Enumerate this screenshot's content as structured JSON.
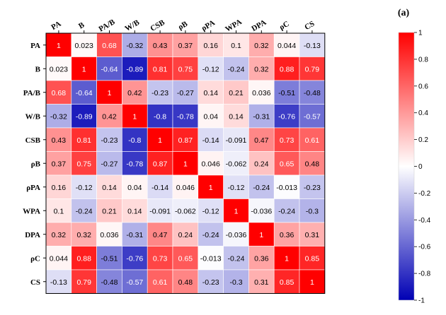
{
  "chart_data": {
    "type": "heatmap",
    "panel_label": "(a)",
    "variables": [
      "PA",
      "B",
      "PA/B",
      "W/B",
      "CSB",
      "ρB",
      "ρPA",
      "WPA",
      "DPA",
      "ρC",
      "CS"
    ],
    "matrix": [
      [
        1,
        0.023,
        0.68,
        -0.32,
        0.43,
        0.37,
        0.16,
        0.1,
        0.32,
        0.044,
        -0.13
      ],
      [
        0.023,
        1,
        -0.64,
        -0.89,
        0.81,
        0.75,
        -0.12,
        -0.24,
        0.32,
        0.88,
        0.79
      ],
      [
        0.68,
        -0.64,
        1,
        0.42,
        -0.23,
        -0.27,
        0.14,
        0.21,
        0.036,
        -0.51,
        -0.48
      ],
      [
        -0.32,
        -0.89,
        0.42,
        1,
        -0.8,
        -0.78,
        0.04,
        0.14,
        -0.31,
        -0.76,
        -0.57
      ],
      [
        0.43,
        0.81,
        -0.23,
        -0.8,
        1,
        0.87,
        -0.14,
        -0.091,
        0.47,
        0.73,
        0.61
      ],
      [
        0.37,
        0.75,
        -0.27,
        -0.78,
        0.87,
        1,
        0.046,
        -0.062,
        0.24,
        0.65,
        0.48
      ],
      [
        0.16,
        -0.12,
        0.14,
        0.04,
        -0.14,
        0.046,
        1,
        -0.12,
        -0.24,
        -0.013,
        -0.23
      ],
      [
        0.1,
        -0.24,
        0.21,
        0.14,
        -0.091,
        -0.062,
        -0.12,
        1,
        -0.036,
        -0.24,
        -0.3
      ],
      [
        0.32,
        0.32,
        0.036,
        -0.31,
        0.47,
        0.24,
        -0.24,
        -0.036,
        1,
        0.36,
        0.31
      ],
      [
        0.044,
        0.88,
        -0.51,
        -0.76,
        0.73,
        0.65,
        -0.013,
        -0.24,
        0.36,
        1,
        0.85
      ],
      [
        -0.13,
        0.79,
        -0.48,
        -0.57,
        0.61,
        0.48,
        -0.23,
        -0.3,
        0.31,
        0.85,
        1
      ]
    ],
    "colorbar": {
      "range": [
        -1,
        1
      ],
      "ticks": [
        "1",
        "0.8",
        "0.6",
        "0.4",
        "0.2",
        "0",
        "-0.2",
        "-0.4",
        "-0.6",
        "-0.8",
        "-1"
      ],
      "colors": {
        "negative": "#0000b4",
        "zero": "#ffffff",
        "positive": "#ff0000"
      }
    }
  }
}
